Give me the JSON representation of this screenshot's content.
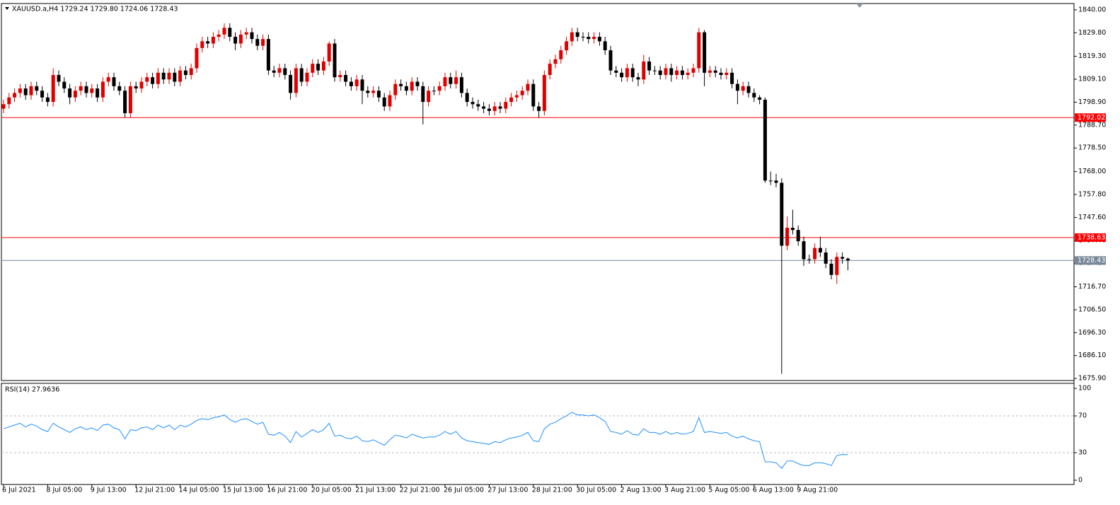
{
  "chart_data": [
    {
      "type": "candlestick",
      "title": "XAUUSD.a,H4  1729.24 1729.80 1724.06 1728.43",
      "categories": [
        "6 Jul 2021",
        null,
        null,
        null,
        null,
        null,
        null,
        null,
        "8 Jul 05:00",
        null,
        null,
        null,
        null,
        null,
        null,
        null,
        "9 Jul 13:00",
        null,
        null,
        null,
        null,
        null,
        null,
        null,
        "12 Jul 21:00",
        null,
        null,
        null,
        null,
        null,
        null,
        null,
        "14 Jul 05:00",
        null,
        null,
        null,
        null,
        null,
        null,
        null,
        "15 Jul 13:00",
        null,
        null,
        null,
        null,
        null,
        null,
        null,
        "16 Jul 21:00",
        null,
        null,
        null,
        null,
        null,
        null,
        null,
        "20 Jul 05:00",
        null,
        null,
        null,
        null,
        null,
        null,
        null,
        "21 Jul 13:00",
        null,
        null,
        null,
        null,
        null,
        null,
        null,
        "22 Jul 21:00",
        null,
        null,
        null,
        null,
        null,
        null,
        null,
        "26 Jul 05:00",
        null,
        null,
        null,
        null,
        null,
        null,
        null,
        "27 Jul 13:00",
        null,
        null,
        null,
        null,
        null,
        null,
        null,
        "28 Jul 21:00",
        null,
        null,
        null,
        null,
        null,
        null,
        null,
        "30 Jul 05:00",
        null,
        null,
        null,
        null,
        null,
        null,
        null,
        "2 Aug 13:00",
        null,
        null,
        null,
        null,
        null,
        null,
        null,
        "3 Aug 21:00",
        null,
        null,
        null,
        null,
        null,
        null,
        null,
        "5 Aug 05:00",
        null,
        null,
        null,
        null,
        null,
        null,
        null,
        "6 Aug 13:00",
        null,
        null,
        null,
        null,
        null,
        null,
        null,
        "9 Aug 21:00",
        null,
        null,
        null,
        null,
        null,
        null,
        null,
        null,
        null
      ],
      "open": [
        1796,
        1798,
        1801,
        1803,
        1805,
        1802,
        1806,
        1804,
        1801,
        1799,
        1811,
        1808,
        1805,
        1801,
        1804,
        1806,
        1803,
        1805,
        1801,
        1808,
        1810,
        1806,
        1804,
        1794,
        1806,
        1805,
        1808,
        1810,
        1807,
        1812,
        1809,
        1812,
        1808,
        1813,
        1811,
        1814,
        1823,
        1826,
        1825,
        1828,
        1829,
        1832,
        1828,
        1825,
        1829,
        1830,
        1827,
        1824,
        1827,
        1813,
        1812,
        1814,
        1811,
        1803,
        1814,
        1808,
        1812,
        1816,
        1813,
        1817,
        1825,
        1810,
        1811,
        1808,
        1806,
        1809,
        1804,
        1803,
        1804,
        1801,
        1797,
        1802,
        1807,
        1806,
        1804,
        1808,
        1806,
        1799,
        1804,
        1804,
        1806,
        1810,
        1807,
        1810,
        1803,
        1799,
        1798,
        1797,
        1796,
        1795,
        1797,
        1796,
        1799,
        1801,
        1802,
        1804,
        1807,
        1797,
        1795,
        1811,
        1816,
        1818,
        1822,
        1826,
        1830,
        1828,
        1828,
        1827,
        1828,
        1826,
        1822,
        1813,
        1812,
        1810,
        1814,
        1810,
        1809,
        1817,
        1813,
        1813,
        1811,
        1814,
        1811,
        1813,
        1811,
        1812,
        1814,
        1830,
        1812,
        1813,
        1812,
        1811,
        1812,
        1807,
        1804,
        1806,
        1803,
        1801,
        1800,
        1764,
        1764,
        1763,
        1735,
        1743,
        1742,
        1737,
        1729,
        1729,
        1734,
        1732,
        1727,
        1722,
        1730,
        1729.24
      ],
      "high": [
        1800,
        1803,
        1805,
        1807,
        1807,
        1808,
        1808,
        1806,
        1803,
        1814,
        1813,
        1810,
        1807,
        1806,
        1808,
        1808,
        1807,
        1807,
        1810,
        1812,
        1812,
        1808,
        1806,
        1808,
        1808,
        1810,
        1812,
        1812,
        1814,
        1814,
        1814,
        1814,
        1815,
        1815,
        1816,
        1825,
        1828,
        1828,
        1830,
        1831,
        1834,
        1834,
        1830,
        1831,
        1832,
        1832,
        1829,
        1829,
        1829,
        1815,
        1816,
        1816,
        1813,
        1816,
        1816,
        1814,
        1818,
        1818,
        1819,
        1826,
        1827,
        1813,
        1813,
        1810,
        1811,
        1811,
        1806,
        1806,
        1806,
        1803,
        1804,
        1809,
        1809,
        1808,
        1810,
        1810,
        1808,
        1806,
        1806,
        1808,
        1812,
        1812,
        1813,
        1812,
        1805,
        1801,
        1800,
        1799,
        1798,
        1799,
        1799,
        1801,
        1803,
        1804,
        1806,
        1809,
        1809,
        1799,
        1813,
        1818,
        1820,
        1824,
        1828,
        1832,
        1832,
        1830,
        1830,
        1830,
        1830,
        1828,
        1824,
        1815,
        1814,
        1816,
        1816,
        1812,
        1820,
        1819,
        1815,
        1815,
        1816,
        1816,
        1815,
        1815,
        1814,
        1816,
        1832,
        1831,
        1815,
        1815,
        1814,
        1814,
        1814,
        1809,
        1808,
        1808,
        1805,
        1802,
        1801,
        1768,
        1767,
        1765,
        1748,
        1751,
        1744,
        1739,
        1731,
        1736,
        1739,
        1734,
        1729,
        1732,
        1732,
        1729.8
      ],
      "low": [
        1794,
        1796,
        1799,
        1801,
        1800,
        1800,
        1802,
        1799,
        1797,
        1797,
        1806,
        1803,
        1798,
        1799,
        1802,
        1801,
        1801,
        1799,
        1799,
        1806,
        1804,
        1802,
        1792,
        1792,
        1803,
        1803,
        1806,
        1805,
        1805,
        1807,
        1807,
        1806,
        1806,
        1809,
        1809,
        1812,
        1821,
        1823,
        1823,
        1826,
        1827,
        1826,
        1822,
        1823,
        1827,
        1825,
        1822,
        1822,
        1811,
        1810,
        1810,
        1809,
        1800,
        1801,
        1806,
        1806,
        1810,
        1811,
        1811,
        1815,
        1808,
        1808,
        1806,
        1804,
        1804,
        1798,
        1801,
        1801,
        1799,
        1795,
        1795,
        1800,
        1804,
        1802,
        1802,
        1804,
        1789,
        1797,
        1802,
        1802,
        1804,
        1805,
        1805,
        1801,
        1797,
        1796,
        1795,
        1794,
        1793,
        1793,
        1794,
        1794,
        1797,
        1799,
        1800,
        1802,
        1795,
        1792,
        1793,
        1809,
        1814,
        1816,
        1820,
        1824,
        1826,
        1826,
        1825,
        1825,
        1824,
        1820,
        1811,
        1810,
        1808,
        1808,
        1808,
        1806,
        1807,
        1811,
        1811,
        1809,
        1809,
        1808,
        1809,
        1809,
        1809,
        1810,
        1812,
        1806,
        1810,
        1810,
        1809,
        1809,
        1805,
        1798,
        1802,
        1801,
        1799,
        1798,
        1763,
        1762,
        1761,
        1678,
        1733,
        1740,
        1735,
        1726,
        1727,
        1727,
        1730,
        1725,
        1720,
        1718,
        1727,
        1724.06
      ],
      "close": [
        1798,
        1801,
        1803,
        1805,
        1802,
        1806,
        1804,
        1801,
        1799,
        1811,
        1808,
        1805,
        1801,
        1804,
        1806,
        1803,
        1805,
        1801,
        1808,
        1810,
        1806,
        1804,
        1794,
        1806,
        1805,
        1808,
        1810,
        1807,
        1812,
        1809,
        1812,
        1808,
        1813,
        1811,
        1814,
        1823,
        1826,
        1825,
        1828,
        1829,
        1832,
        1828,
        1825,
        1829,
        1830,
        1827,
        1824,
        1827,
        1813,
        1812,
        1814,
        1811,
        1803,
        1814,
        1808,
        1812,
        1816,
        1813,
        1817,
        1825,
        1810,
        1811,
        1808,
        1806,
        1809,
        1804,
        1803,
        1804,
        1801,
        1797,
        1802,
        1807,
        1806,
        1804,
        1808,
        1806,
        1799,
        1804,
        1804,
        1806,
        1810,
        1807,
        1810,
        1803,
        1799,
        1798,
        1797,
        1796,
        1795,
        1797,
        1796,
        1799,
        1801,
        1802,
        1804,
        1807,
        1797,
        1795,
        1811,
        1816,
        1818,
        1822,
        1826,
        1830,
        1828,
        1828,
        1827,
        1828,
        1826,
        1822,
        1813,
        1812,
        1810,
        1814,
        1810,
        1809,
        1817,
        1813,
        1813,
        1811,
        1814,
        1811,
        1813,
        1811,
        1812,
        1814,
        1830,
        1812,
        1813,
        1812,
        1811,
        1812,
        1807,
        1804,
        1806,
        1803,
        1801,
        1800,
        1764,
        1764,
        1763,
        1735,
        1743,
        1742,
        1737,
        1729,
        1729,
        1734,
        1732,
        1727,
        1722,
        1730,
        1729.24,
        1728.43
      ],
      "up_color": "#e00000",
      "down_color": "#000000",
      "ylim": [
        1675,
        1842.8
      ],
      "yticks": [
        {
          "value": 1840,
          "label": "1840.00"
        },
        {
          "value": 1829.8,
          "label": "1829.80"
        },
        {
          "value": 1819.3,
          "label": "1819.30"
        },
        {
          "value": 1809.1,
          "label": "1809.10"
        },
        {
          "value": 1798.9,
          "label": "1798.90"
        },
        {
          "value": 1788.7,
          "label": "1788.70"
        },
        {
          "value": 1778.5,
          "label": "1778.50"
        },
        {
          "value": 1768,
          "label": "1768.00"
        },
        {
          "value": 1757.8,
          "label": "1757.80"
        },
        {
          "value": 1747.6,
          "label": "1747.60"
        },
        {
          "value": 1737.4,
          "label": "1737.40"
        },
        {
          "value": 1727.2,
          "label": "1727.20"
        },
        {
          "value": 1716.7,
          "label": "1716.70"
        },
        {
          "value": 1706.5,
          "label": "1706.50"
        },
        {
          "value": 1696.3,
          "label": "1696.30"
        },
        {
          "value": 1686.1,
          "label": "1686.10"
        },
        {
          "value": 1675.9,
          "label": "1675.90"
        }
      ],
      "hlines": [
        {
          "value": 1792.02,
          "color": "#ff0000"
        },
        {
          "value": 1738.63,
          "color": "#ff0000"
        },
        {
          "value": 1728.43,
          "color": "#778899"
        }
      ]
    },
    {
      "type": "line",
      "title": "RSI(14) 27.9636",
      "color": "#1e90ff",
      "values": [
        56,
        58,
        60,
        62,
        58,
        61,
        59,
        55,
        53,
        62,
        58,
        55,
        52,
        56,
        58,
        55,
        57,
        54,
        60,
        61,
        57,
        55,
        45,
        55,
        54,
        57,
        58,
        55,
        60,
        57,
        60,
        55,
        60,
        58,
        61,
        65,
        67,
        66,
        68,
        69,
        71,
        66,
        63,
        66,
        67,
        64,
        61,
        63,
        50,
        49,
        52,
        48,
        41,
        53,
        47,
        51,
        55,
        52,
        55,
        62,
        48,
        49,
        46,
        45,
        48,
        43,
        42,
        44,
        41,
        38,
        44,
        49,
        48,
        46,
        50,
        48,
        46,
        47,
        47,
        49,
        53,
        50,
        53,
        46,
        43,
        42,
        41,
        40,
        39,
        42,
        41,
        44,
        46,
        47,
        49,
        52,
        43,
        42,
        56,
        61,
        63,
        67,
        70,
        74,
        71,
        71,
        70,
        71,
        68,
        64,
        53,
        52,
        50,
        54,
        50,
        49,
        56,
        52,
        52,
        50,
        53,
        50,
        52,
        50,
        51,
        53,
        68,
        52,
        53,
        52,
        51,
        52,
        48,
        46,
        48,
        45,
        43,
        42,
        20,
        20,
        19,
        13,
        21,
        21,
        18,
        16,
        16,
        19,
        19,
        18,
        16,
        27,
        28,
        27.9636
      ],
      "ylim": [
        -4.6,
        105.4
      ],
      "yticks": [
        100,
        70,
        30,
        0
      ]
    }
  ]
}
